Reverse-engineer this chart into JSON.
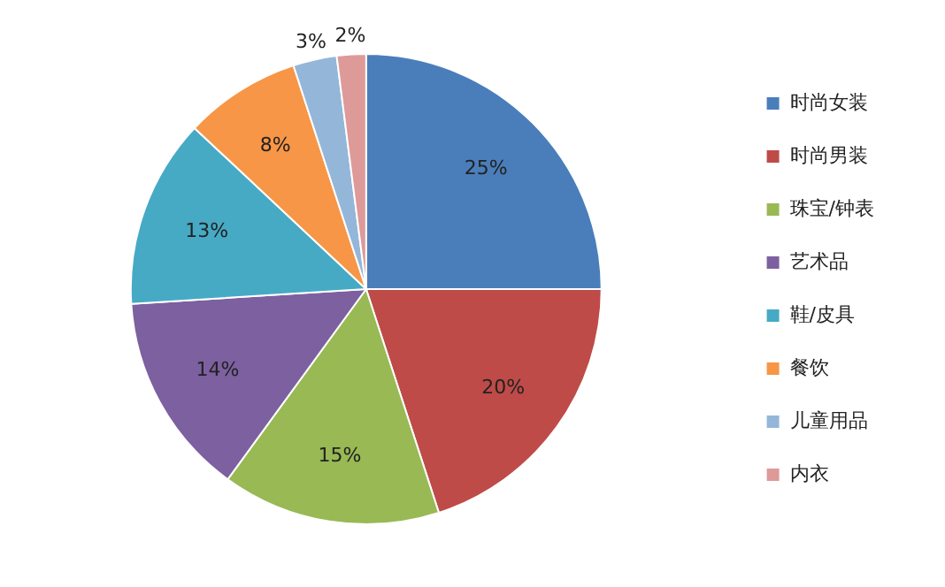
{
  "chart_data": {
    "type": "pie",
    "categories": [
      "时尚女装",
      "时尚男装",
      "珠宝/钟表",
      "艺术品",
      "鞋/皮具",
      "餐饮",
      "儿童用品",
      "内衣"
    ],
    "values": [
      25,
      20,
      15,
      14,
      13,
      8,
      3,
      2
    ],
    "value_labels": [
      "25%",
      "20%",
      "15%",
      "14%",
      "13%",
      "8%",
      "3%",
      "2%"
    ],
    "colors": [
      "#4a7ebb",
      "#be4b48",
      "#98b954",
      "#7d60a0",
      "#46aac5",
      "#f79646",
      "#94b6d9",
      "#dd9a99"
    ],
    "legend": "right"
  }
}
